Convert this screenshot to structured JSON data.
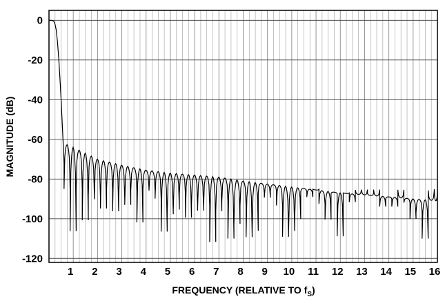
{
  "chart_data": {
    "type": "line",
    "title": "",
    "xlabel": "FREQUENCY (RELATIVE TO f",
    "xlabel_sub": "S",
    "xlabel_end": ")",
    "ylabel": "MAGNITUDE (dB)",
    "xlim": [
      0,
      16
    ],
    "ylim": [
      -122,
      5
    ],
    "x_ticks": [
      1,
      2,
      3,
      4,
      5,
      6,
      7,
      8,
      9,
      10,
      11,
      12,
      13,
      14,
      15,
      16
    ],
    "x_tick_labels": [
      "1",
      "2",
      "3",
      "4",
      "5",
      "6",
      "7",
      "8",
      "9",
      "10",
      "11",
      "12",
      "13",
      "14",
      "15",
      "16"
    ],
    "y_ticks": [
      0,
      -20,
      -40,
      -60,
      -80,
      -100,
      -120
    ],
    "y_tick_labels": [
      "0",
      "-20",
      "-40",
      "-60",
      "-80",
      "-100",
      "-120"
    ],
    "grid": true,
    "minor_x_grid_per_unit": 4,
    "series": [
      {
        "main_lobe": {
          "x": [
            0.0,
            0.1,
            0.2,
            0.25,
            0.3,
            0.35,
            0.4,
            0.45,
            0.5,
            0.55,
            0.6,
            0.62
          ],
          "y": [
            0,
            0,
            -0.5,
            -2,
            -5,
            -11,
            -19,
            -29,
            -40,
            -53,
            -66,
            -72
          ]
        },
        "sidelobe_envelope": {
          "x": [
            0.62,
            0.8,
            1.0,
            1.5,
            2.0,
            3.0,
            4.0,
            5.0,
            6.0,
            7.0,
            8.0,
            9.0,
            10.0,
            11.0,
            12.0,
            13.0,
            14.0,
            15.0,
            16.0
          ],
          "y": [
            -62,
            -63,
            -64,
            -67,
            -70,
            -73,
            -75.5,
            -77,
            -78,
            -79,
            -81,
            -82.5,
            -84,
            -85.5,
            -87,
            -88,
            -89,
            -90,
            -91
          ]
        },
        "sidelobe_period": 0.25,
        "null_depth_db": [
          -85,
          -110
        ]
      }
    ]
  }
}
